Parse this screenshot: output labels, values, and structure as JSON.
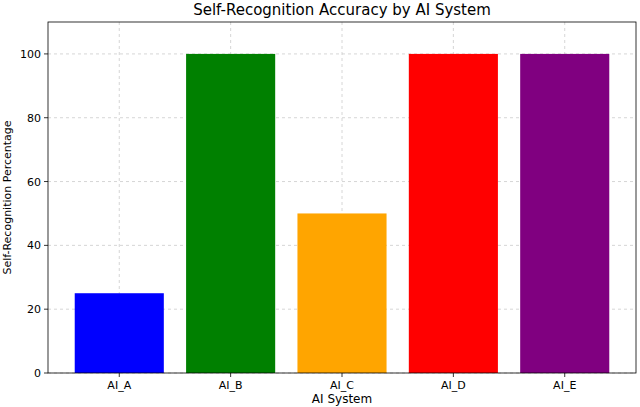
{
  "chart_data": {
    "type": "bar",
    "title": "Self-Recognition Accuracy by AI System",
    "x_label": "AI System",
    "y_label": "Self-Recognition Percentage",
    "categories": [
      "AI_A",
      "AI_B",
      "AI_C",
      "AI_D",
      "AI_E"
    ],
    "values": [
      25,
      100,
      50,
      100,
      100
    ],
    "colors": [
      "#0000ff",
      "#008000",
      "#ffa500",
      "#ff0000",
      "#800080"
    ],
    "ylim": [
      0,
      110
    ],
    "yticks": [
      0,
      20,
      40,
      60,
      80,
      100
    ],
    "grid": true
  }
}
